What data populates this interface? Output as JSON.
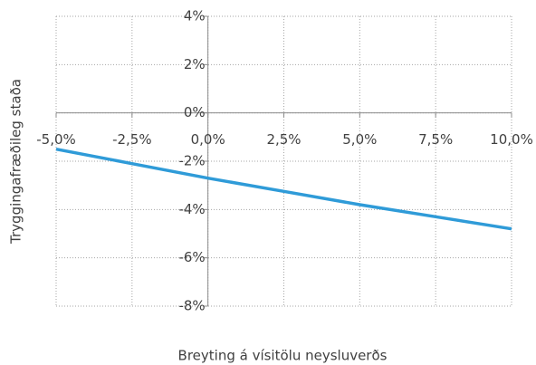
{
  "chart_data": {
    "type": "line",
    "xlabel": "Breyting á vísitölu neysluverðs",
    "ylabel": "Tryggingafræðileg staða",
    "x": [
      -5,
      -2.5,
      0,
      2.5,
      5,
      7.5,
      10
    ],
    "series": [
      {
        "name": "Tryggingafræðileg staða",
        "color": "#2f9bd8",
        "values": [
          -1.5,
          -2.1,
          -2.7,
          -3.25,
          -3.8,
          -4.3,
          -4.8
        ]
      }
    ],
    "xlim": [
      -5,
      10
    ],
    "xticks": [
      {
        "value": -5,
        "label": "-5,0%"
      },
      {
        "value": -2.5,
        "label": "-2,5%"
      },
      {
        "value": 0,
        "label": "0,0%"
      },
      {
        "value": 2.5,
        "label": "2,5%"
      },
      {
        "value": 5,
        "label": "5,0%"
      },
      {
        "value": 7.5,
        "label": "7,5%"
      },
      {
        "value": 10,
        "label": "10,0%"
      }
    ],
    "ylim": [
      -8,
      4
    ],
    "yticks": [
      {
        "value": -8,
        "label": "-8%"
      },
      {
        "value": -6,
        "label": "-6%"
      },
      {
        "value": -4,
        "label": "-4%"
      },
      {
        "value": -2,
        "label": "-2%"
      },
      {
        "value": 0,
        "label": "0%"
      },
      {
        "value": 2,
        "label": "2%"
      },
      {
        "value": 4,
        "label": "4%"
      }
    ],
    "grid": true
  }
}
